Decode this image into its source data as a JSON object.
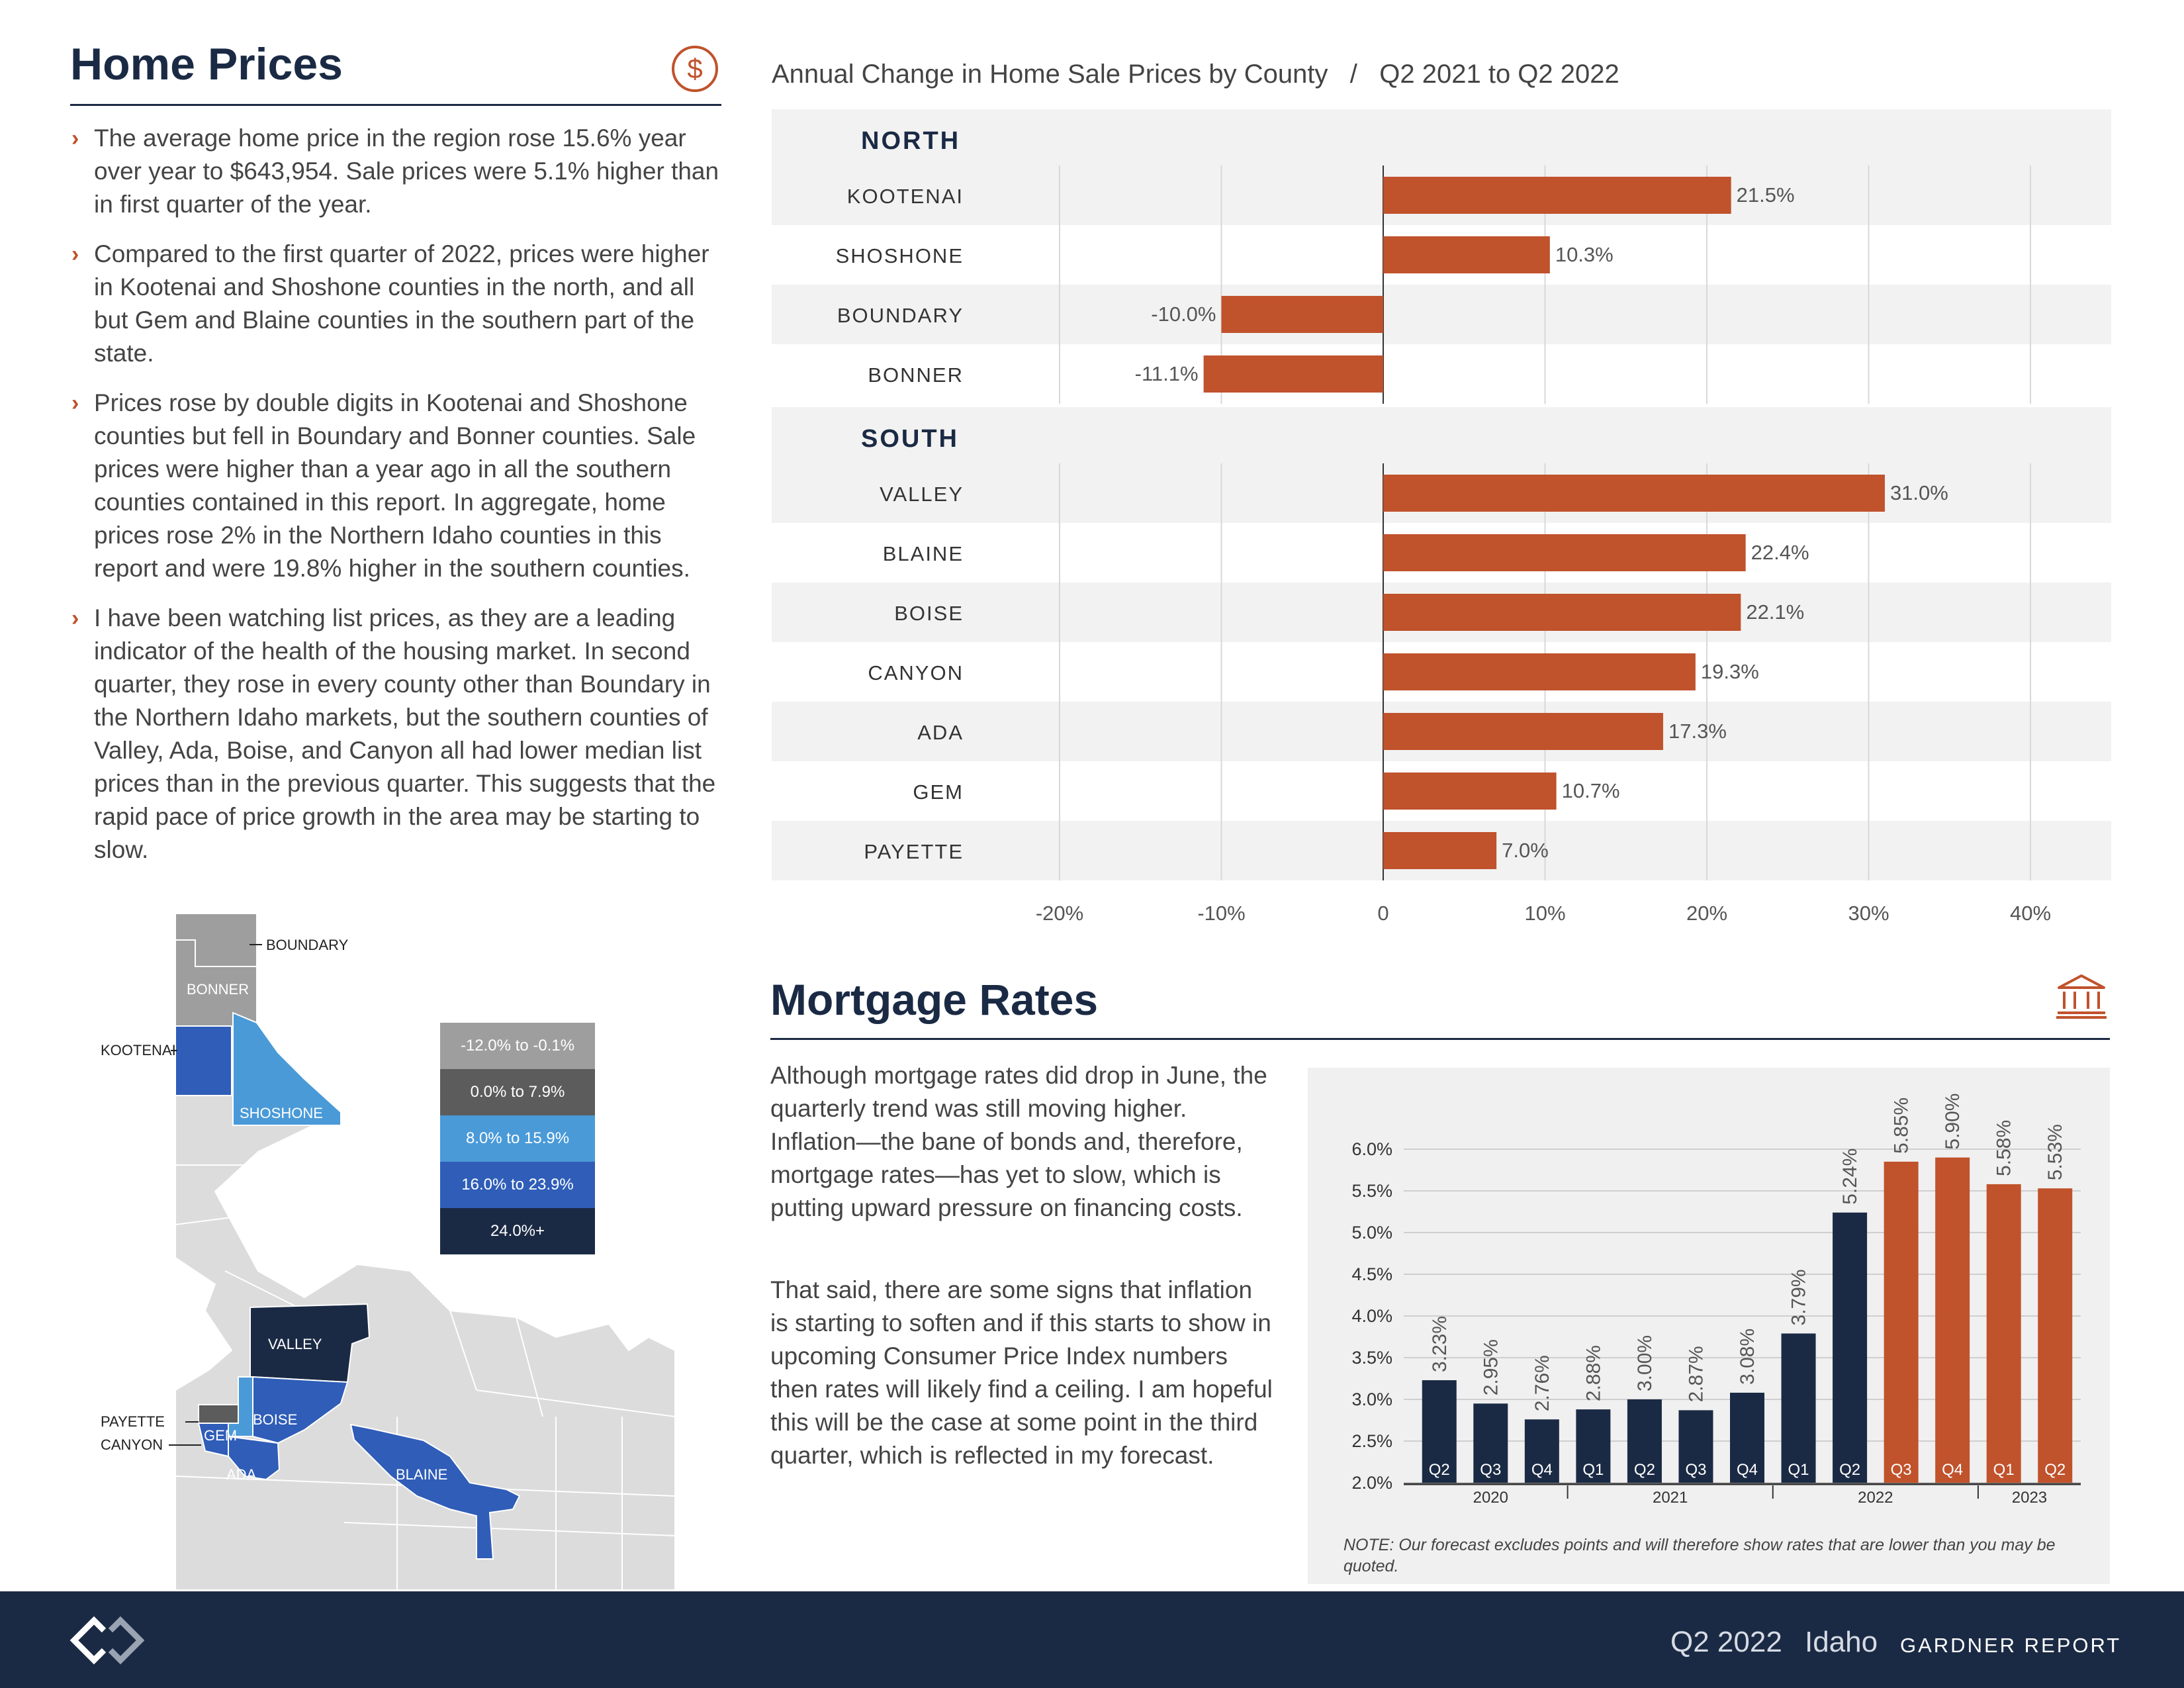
{
  "home": {
    "title": "Home Prices",
    "bullets": [
      "The average home price in the region rose 15.6% year over year to $643,954. Sale prices were 5.1% higher than in first quarter of the year.",
      "Compared to the first quarter of 2022, prices were higher in Kootenai and Shoshone counties in the north, and all but Gem and Blaine counties in the southern part of the state.",
      "Prices rose by double digits in Kootenai and Shoshone counties but fell in Boundary and Bonner counties. Sale prices were higher than a year ago in all the southern counties contained in this report. In aggregate, home prices rose 2% in the Northern Idaho counties in this report and were 19.8% higher in the southern counties.",
      "I have been watching list prices, as they are a leading indicator of the health of the housing market. In second quarter, they rose in every county other than Boundary in the Northern Idaho markets, but the southern counties of Valley, Ada, Boise, and Canyon all had lower median list prices than in the previous quarter. This suggests that the rapid pace of price growth in the area may be starting to slow."
    ],
    "bullet_marker": "›"
  },
  "map": {
    "labels": {
      "boundary": "BOUNDARY",
      "bonner": "BONNER",
      "kootenai": "KOOTENAI",
      "shoshone": "SHOSHONE",
      "valley": "VALLEY",
      "payette": "PAYETTE",
      "canyon": "CANYON",
      "gem": "GEM",
      "boise": "BOISE",
      "ada": "ADA",
      "blaine": "BLAINE"
    },
    "legend": [
      {
        "label": "-12.0% to -0.1%",
        "color": "#9e9e9e"
      },
      {
        "label": "0.0% to 7.9%",
        "color": "#5c5c5c"
      },
      {
        "label": "8.0% to 15.9%",
        "color": "#4a9ad8"
      },
      {
        "label": "16.0% to 23.9%",
        "color": "#2f5db8"
      },
      {
        "label": "24.0%+",
        "color": "#1b2a44"
      }
    ]
  },
  "chart_data": [
    {
      "type": "bar",
      "orientation": "horizontal",
      "title": "Annual Change in Home Sale Prices by County   /   Q2 2021 to Q2 2022",
      "groups": [
        {
          "name": "NORTH",
          "categories": [
            "KOOTENAI",
            "SHOSHONE",
            "BOUNDARY",
            "BONNER"
          ],
          "values": [
            21.5,
            10.3,
            -10.0,
            -11.1
          ],
          "labels": [
            "21.5%",
            "10.3%",
            "-10.0%",
            "-11.1%"
          ]
        },
        {
          "name": "SOUTH",
          "categories": [
            "VALLEY",
            "BLAINE",
            "BOISE",
            "CANYON",
            "ADA",
            "GEM",
            "PAYETTE"
          ],
          "values": [
            31.0,
            22.4,
            22.1,
            19.3,
            17.3,
            10.7,
            7.0
          ],
          "labels": [
            "31.0%",
            "22.4%",
            "22.1%",
            "19.3%",
            "17.3%",
            "10.7%",
            "7.0%"
          ]
        }
      ],
      "xlim": [
        -20,
        40
      ],
      "xticks": [
        "-20%",
        "-10%",
        "0",
        "10%",
        "20%",
        "30%",
        "40%"
      ],
      "bar_color": "#c0522c",
      "grid": true
    },
    {
      "type": "bar",
      "title": "",
      "categories": [
        "Q2",
        "Q3",
        "Q4",
        "Q1",
        "Q2",
        "Q3",
        "Q4",
        "Q1",
        "Q2",
        "Q3",
        "Q4",
        "Q1",
        "Q2"
      ],
      "years": [
        {
          "label": "2020",
          "quarters": 3
        },
        {
          "label": "2021",
          "quarters": 4
        },
        {
          "label": "2022",
          "quarters": 4
        },
        {
          "label": "2023",
          "quarters": 2
        }
      ],
      "values": [
        3.23,
        2.95,
        2.76,
        2.88,
        3.0,
        2.87,
        3.08,
        3.79,
        5.24,
        5.85,
        5.9,
        5.58,
        5.53
      ],
      "labels": [
        "3.23%",
        "2.95%",
        "2.76%",
        "2.88%",
        "3.00%",
        "2.87%",
        "3.08%",
        "3.79%",
        "5.24%",
        "5.85%",
        "5.90%",
        "5.58%",
        "5.53%"
      ],
      "forecast": [
        false,
        false,
        false,
        false,
        false,
        false,
        false,
        false,
        false,
        true,
        true,
        true,
        true
      ],
      "ylim": [
        2.0,
        6.0
      ],
      "yticks": [
        "2.0%",
        "2.5%",
        "3.0%",
        "3.5%",
        "4.0%",
        "4.5%",
        "5.0%",
        "5.5%",
        "6.0%"
      ],
      "colors": {
        "actual": "#1b2a44",
        "forecast": "#c0522c"
      },
      "grid": true
    }
  ],
  "mortgage": {
    "title": "Mortgage Rates",
    "paragraphs": [
      "Although mortgage rates did drop in June, the quarterly trend was still moving higher. Inflation—the bane of bonds and, therefore, mortgage rates—has yet to slow, which is putting upward pressure on financing costs.",
      "That said, there are some signs that inflation is starting to soften and if this starts to show in upcoming Consumer Price Index numbers then rates will likely find a ceiling. I am hopeful this will be the case at some point in the third quarter, which is reflected in my forecast."
    ],
    "note": "NOTE: Our forecast excludes points and will therefore show rates that are lower than you may be quoted."
  },
  "footer": {
    "quarter": "Q2 2022",
    "state": "Idaho",
    "report": "GARDNER REPORT"
  },
  "colors": {
    "navy": "#1b2a44",
    "accent": "#c0522c",
    "band": "#f2f2f2"
  }
}
